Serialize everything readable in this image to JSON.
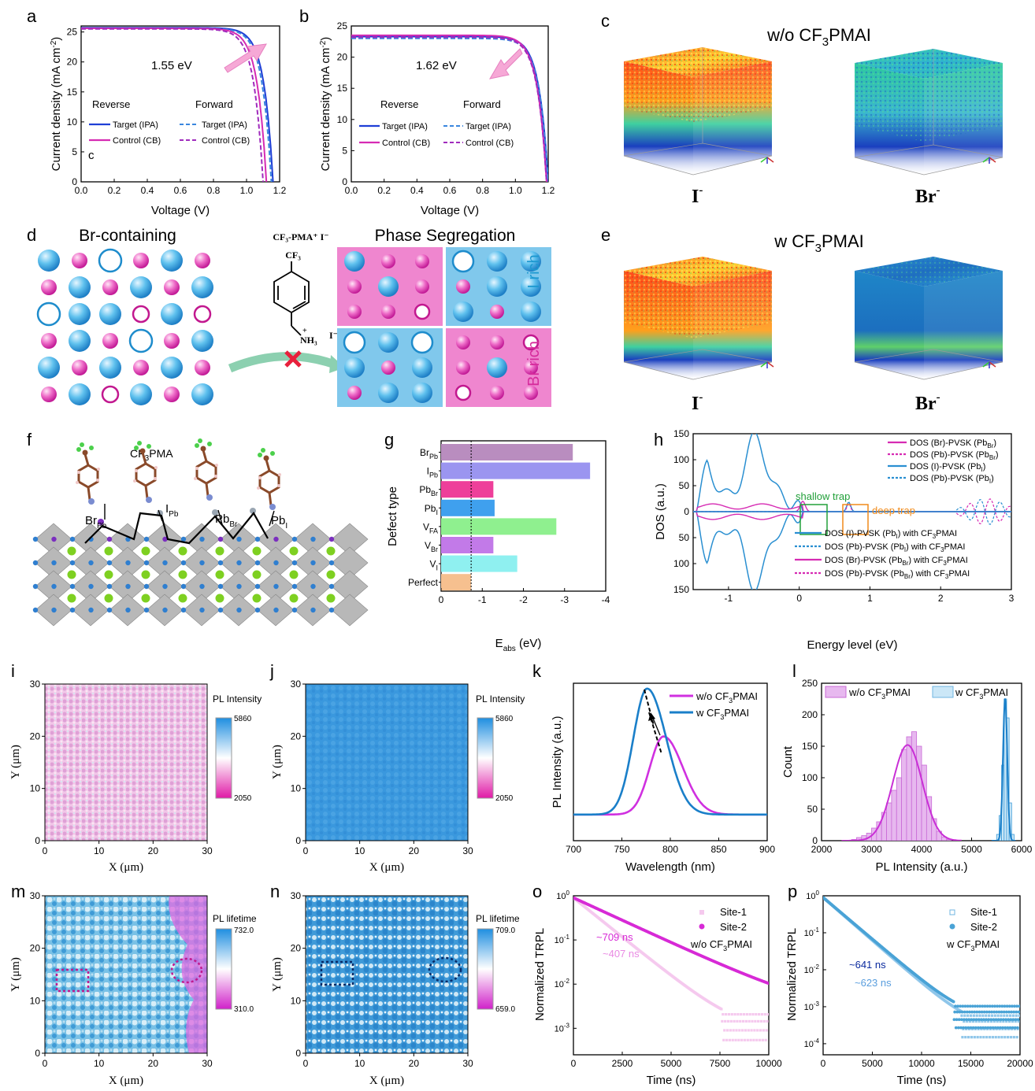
{
  "panels": {
    "a": {
      "letter": "a",
      "xlabel": "Voltage (V)",
      "ylabel": "Current density (mA cm",
      "ylabel_sup": "-2",
      "ylabel_end": ")",
      "bandgap": "1.55 eV",
      "reverse": "Reverse",
      "forward": "Forward",
      "leg": [
        "Target (IPA)",
        "Target (IPA)",
        "Control (CB)",
        "Control (CB)"
      ],
      "stray": "c"
    },
    "b": {
      "letter": "b",
      "xlabel": "Voltage (V)",
      "ylabel": "Current density (mA cm",
      "ylabel_sup": "-2",
      "ylabel_end": ")",
      "bandgap": "1.62 eV",
      "reverse": "Reverse",
      "forward": "Forward",
      "leg": [
        "Target (IPA)",
        "Target (IPA)",
        "Control (CB)",
        "Control (CB)"
      ]
    },
    "c": {
      "letter": "c",
      "title": "w/o CF",
      "title_sub": "3",
      "title_end": "PMAI",
      "ion1": "I",
      "ion2": "Br",
      "charge": "-"
    },
    "d": {
      "letter": "d",
      "left_title": "Br-containing",
      "mol_title": "CF₃-PMA⁺ I⁻",
      "mol_cf3": "CF₃",
      "mol_nh3": "NH₃",
      "mol_i": "I⁻",
      "plus": "+",
      "right_title": "Phase Segregation",
      "irich": "I rich",
      "brrich": "Br rich"
    },
    "e": {
      "letter": "e",
      "title": "w CF",
      "title_sub": "3",
      "title_end": "PMAI",
      "ion1": "I",
      "ion2": "Br",
      "charge": "-"
    },
    "f": {
      "letter": "f",
      "mol": "CF",
      "mol_sub": "3",
      "mol_end": "PMA",
      "labels": [
        {
          "m": "Br",
          "s": "Pb"
        },
        {
          "m": "I",
          "s": "Pb"
        },
        {
          "m": "Pb",
          "s": "Br"
        },
        {
          "m": "Pb",
          "s": "I"
        }
      ]
    },
    "g": {
      "letter": "g",
      "xlabel_main": "E",
      "xlabel_sub": "abs",
      "xlabel_end": " (eV)",
      "ylabel": "Defect type"
    },
    "h": {
      "letter": "h",
      "xlabel": "Energy level (eV)",
      "ylabel": "DOS (a.u.)",
      "shallow": "shallow trap",
      "deep": "deep trap",
      "legend_top": [
        {
          "a": "DOS (Br)-PVSK (Pb",
          "s": "Br",
          "b": ")"
        },
        {
          "a": "DOS (Pb)-PVSK (Pb",
          "s": "Br",
          "b": ")"
        },
        {
          "a": "DOS (I)-PVSK (Pb",
          "s": "I",
          "b": ")"
        },
        {
          "a": "DOS (Pb)-PVSK (Pb",
          "s": "I",
          "b": ")"
        }
      ],
      "legend_bot": [
        {
          "a": "DOS (I)-PVSK (Pb",
          "s": "I",
          "b": ") with CF",
          "s2": "3",
          "c": "PMAI"
        },
        {
          "a": "DOS (Pb)-PVSK (Pb",
          "s": "I",
          "b": ") with CF",
          "s2": "3",
          "c": "PMAI"
        },
        {
          "a": "DOS (Br)-PVSK (Pb",
          "s": "Br",
          "b": ") with CF",
          "s2": "3",
          "c": "PMAI"
        },
        {
          "a": "DOS (Pb)-PVSK (Pb",
          "s": "Br",
          "b": ") with CF",
          "s2": "3",
          "c": "PMAI"
        }
      ]
    },
    "i": {
      "letter": "i",
      "xlabel": "X (μm)",
      "ylabel": "Y (μm)",
      "cbar_title": "PL Intensity",
      "cbar_max": "5860",
      "cbar_min": "2050"
    },
    "j": {
      "letter": "j",
      "xlabel": "X (μm)",
      "ylabel": "Y (μm)",
      "cbar_title": "PL Intensity",
      "cbar_max": "5860",
      "cbar_min": "2050"
    },
    "k": {
      "letter": "k",
      "xlabel": "Wavelength (nm)",
      "ylabel": "PL Intensity (a.u.)",
      "leg1": "w/o CF",
      "leg2": "w CF",
      "sub": "3",
      "end": "PMAI"
    },
    "l": {
      "letter": "l",
      "xlabel": "PL Intensity (a.u.)",
      "ylabel": "Count",
      "leg1": "w/o CF",
      "leg2": "w CF",
      "sub": "3",
      "end": "PMAI"
    },
    "m": {
      "letter": "m",
      "xlabel": "X (μm)",
      "ylabel": "Y (μm)",
      "cbar_title": "PL lifetime",
      "cbar_max": "732.0",
      "cbar_min": "310.0"
    },
    "n": {
      "letter": "n",
      "xlabel": "X (μm)",
      "ylabel": "Y (μm)",
      "cbar_title": "PL lifetime",
      "cbar_max": "709.0",
      "cbar_min": "659.0"
    },
    "o": {
      "letter": "o",
      "xlabel": "Time (ns)",
      "ylabel": "Normalized TRPL",
      "site1": "Site-1",
      "site2": "Site-2",
      "cond": "w/o CF",
      "sub": "3",
      "end": "PMAI",
      "tau1": "~709 ns",
      "tau2": "~407 ns"
    },
    "p": {
      "letter": "p",
      "xlabel": "Time (ns)",
      "ylabel": "Normalized TRPL",
      "site1": "Site-1",
      "site2": "Site-2",
      "cond": "w CF",
      "sub": "3",
      "end": "PMAI",
      "tau1": "~641 ns",
      "tau2": "~623 ns"
    }
  },
  "colors": {
    "blue": "#1f3fd6",
    "magenta": "#d62bb3",
    "lightblue": "#2b8fd1",
    "defect_colors": [
      "#b98dbf",
      "#9b95f0",
      "#ee3f9a",
      "#3fa0ee",
      "#8ff08f",
      "#c27ae8",
      "#8ff0f0",
      "#f6c08f"
    ]
  },
  "chart_data": [
    {
      "type": "line",
      "panel": "a",
      "xlabel": "Voltage (V)",
      "ylabel": "Current density (mA cm-2)",
      "xlim": [
        0,
        1.2
      ],
      "ylim": [
        0,
        26
      ],
      "xticks": [
        "0.0",
        "0.2",
        "0.4",
        "0.6",
        "0.8",
        "1.0",
        "1.2"
      ],
      "yticks": [
        "0",
        "5",
        "10",
        "15",
        "20",
        "25"
      ],
      "series": [
        {
          "name": "Target (IPA)",
          "scan": "Reverse",
          "jsc": 25.7,
          "voc": 1.16
        },
        {
          "name": "Target (IPA)",
          "scan": "Forward",
          "jsc": 25.6,
          "voc": 1.15
        },
        {
          "name": "Control (CB)",
          "scan": "Reverse",
          "jsc": 25.6,
          "voc": 1.12
        },
        {
          "name": "Control (CB)",
          "scan": "Forward",
          "jsc": 25.5,
          "voc": 1.1
        }
      ]
    },
    {
      "type": "line",
      "panel": "b",
      "xlabel": "Voltage (V)",
      "ylabel": "Current density (mA cm-2)",
      "xlim": [
        0,
        1.2
      ],
      "ylim": [
        0,
        25
      ],
      "xticks": [
        "0.0",
        "0.2",
        "0.4",
        "0.6",
        "0.8",
        "1.0",
        "1.2"
      ],
      "yticks": [
        "0",
        "5",
        "10",
        "15",
        "20",
        "25"
      ],
      "series": [
        {
          "name": "Target (IPA)",
          "scan": "Reverse",
          "jsc": 23.3,
          "voc": 1.2
        },
        {
          "name": "Target (IPA)",
          "scan": "Forward",
          "jsc": 23.0,
          "voc": 1.2
        },
        {
          "name": "Control (CB)",
          "scan": "Reverse",
          "jsc": 23.5,
          "voc": 1.19
        },
        {
          "name": "Control (CB)",
          "scan": "Forward",
          "jsc": 23.2,
          "voc": 1.19
        }
      ]
    },
    {
      "type": "bar",
      "panel": "g",
      "orientation": "horizontal",
      "xlabel": "Eabs (eV)",
      "ylabel": "Defect type",
      "xlim": [
        0,
        -4
      ],
      "xticks": [
        "0",
        "-1",
        "-2",
        "-3",
        "-4"
      ],
      "categories": [
        {
          "m": "Br",
          "s": "Pb"
        },
        {
          "m": "I",
          "s": "Pb"
        },
        {
          "m": "Pb",
          "s": "Br"
        },
        {
          "m": "Pb",
          "s": "I"
        },
        {
          "m": "V",
          "s": "FA"
        },
        {
          "m": "V",
          "s": "Br"
        },
        {
          "m": "V",
          "s": "I"
        },
        {
          "m": "Perfect",
          "s": ""
        }
      ],
      "values": [
        -3.2,
        -3.62,
        -1.27,
        -1.3,
        -2.8,
        -1.27,
        -1.85,
        -0.73
      ],
      "reference_line": -0.73
    },
    {
      "type": "line",
      "panel": "h",
      "xlabel": "Energy level (eV)",
      "ylabel": "DOS (a.u.)",
      "xlim": [
        -1.5,
        3
      ],
      "ylim": [
        -150,
        150
      ],
      "xticks": [
        "-1",
        "0",
        "1",
        "2",
        "3"
      ],
      "yticks": [
        "150",
        "100",
        "50",
        "0",
        "50",
        "100",
        "150"
      ]
    },
    {
      "type": "line",
      "panel": "k",
      "xlabel": "Wavelength (nm)",
      "ylabel": "PL Intensity (a.u.)",
      "xlim": [
        700,
        900
      ],
      "xticks": [
        "700",
        "750",
        "800",
        "850",
        "900"
      ],
      "series": [
        {
          "name": "w/o CF3PMAI",
          "peak": 793,
          "height": 0.62
        },
        {
          "name": "w CF3PMAI",
          "peak": 776,
          "height": 1.0
        }
      ]
    },
    {
      "type": "bar",
      "panel": "l",
      "xlabel": "PL Intensity (a.u.)",
      "ylabel": "Count",
      "xlim": [
        2000,
        6000
      ],
      "ylim": [
        0,
        250
      ],
      "xticks": [
        "2000",
        "3000",
        "4000",
        "5000",
        "6000"
      ],
      "yticks": [
        "0",
        "50",
        "100",
        "150",
        "200",
        "250"
      ],
      "series": [
        {
          "name": "w/o CF3PMAI",
          "bins": [
            2600,
            2700,
            2800,
            2900,
            3000,
            3100,
            3200,
            3300,
            3400,
            3500,
            3600,
            3700,
            3800,
            3900,
            4000,
            4100,
            4200,
            4300,
            4400,
            4500
          ],
          "values": [
            2,
            5,
            8,
            12,
            20,
            30,
            45,
            60,
            80,
            100,
            145,
            165,
            173,
            150,
            120,
            70,
            35,
            15,
            6,
            2
          ]
        },
        {
          "name": "w CF3PMAI",
          "bins": [
            5500,
            5550,
            5600,
            5650,
            5700,
            5750,
            5800
          ],
          "values": [
            10,
            40,
            120,
            225,
            195,
            60,
            10
          ]
        }
      ]
    },
    {
      "type": "scatter",
      "panel": "o",
      "xlabel": "Time (ns)",
      "ylabel": "Normalized TRPL",
      "xlim": [
        0,
        10000
      ],
      "log_y": true,
      "xticks": [
        "0",
        "2500",
        "5000",
        "7500",
        "10000"
      ],
      "series": [
        {
          "name": "Site-1",
          "lifetime": "~407 ns"
        },
        {
          "name": "Site-2",
          "lifetime": "~709 ns"
        }
      ]
    },
    {
      "type": "scatter",
      "panel": "p",
      "xlabel": "Time (ns)",
      "ylabel": "Normalized TRPL",
      "xlim": [
        0,
        20000
      ],
      "log_y": true,
      "xticks": [
        "0",
        "5000",
        "10000",
        "15000",
        "20000"
      ],
      "series": [
        {
          "name": "Site-1",
          "lifetime": "~623 ns"
        },
        {
          "name": "Site-2",
          "lifetime": "~641 ns"
        }
      ]
    }
  ]
}
